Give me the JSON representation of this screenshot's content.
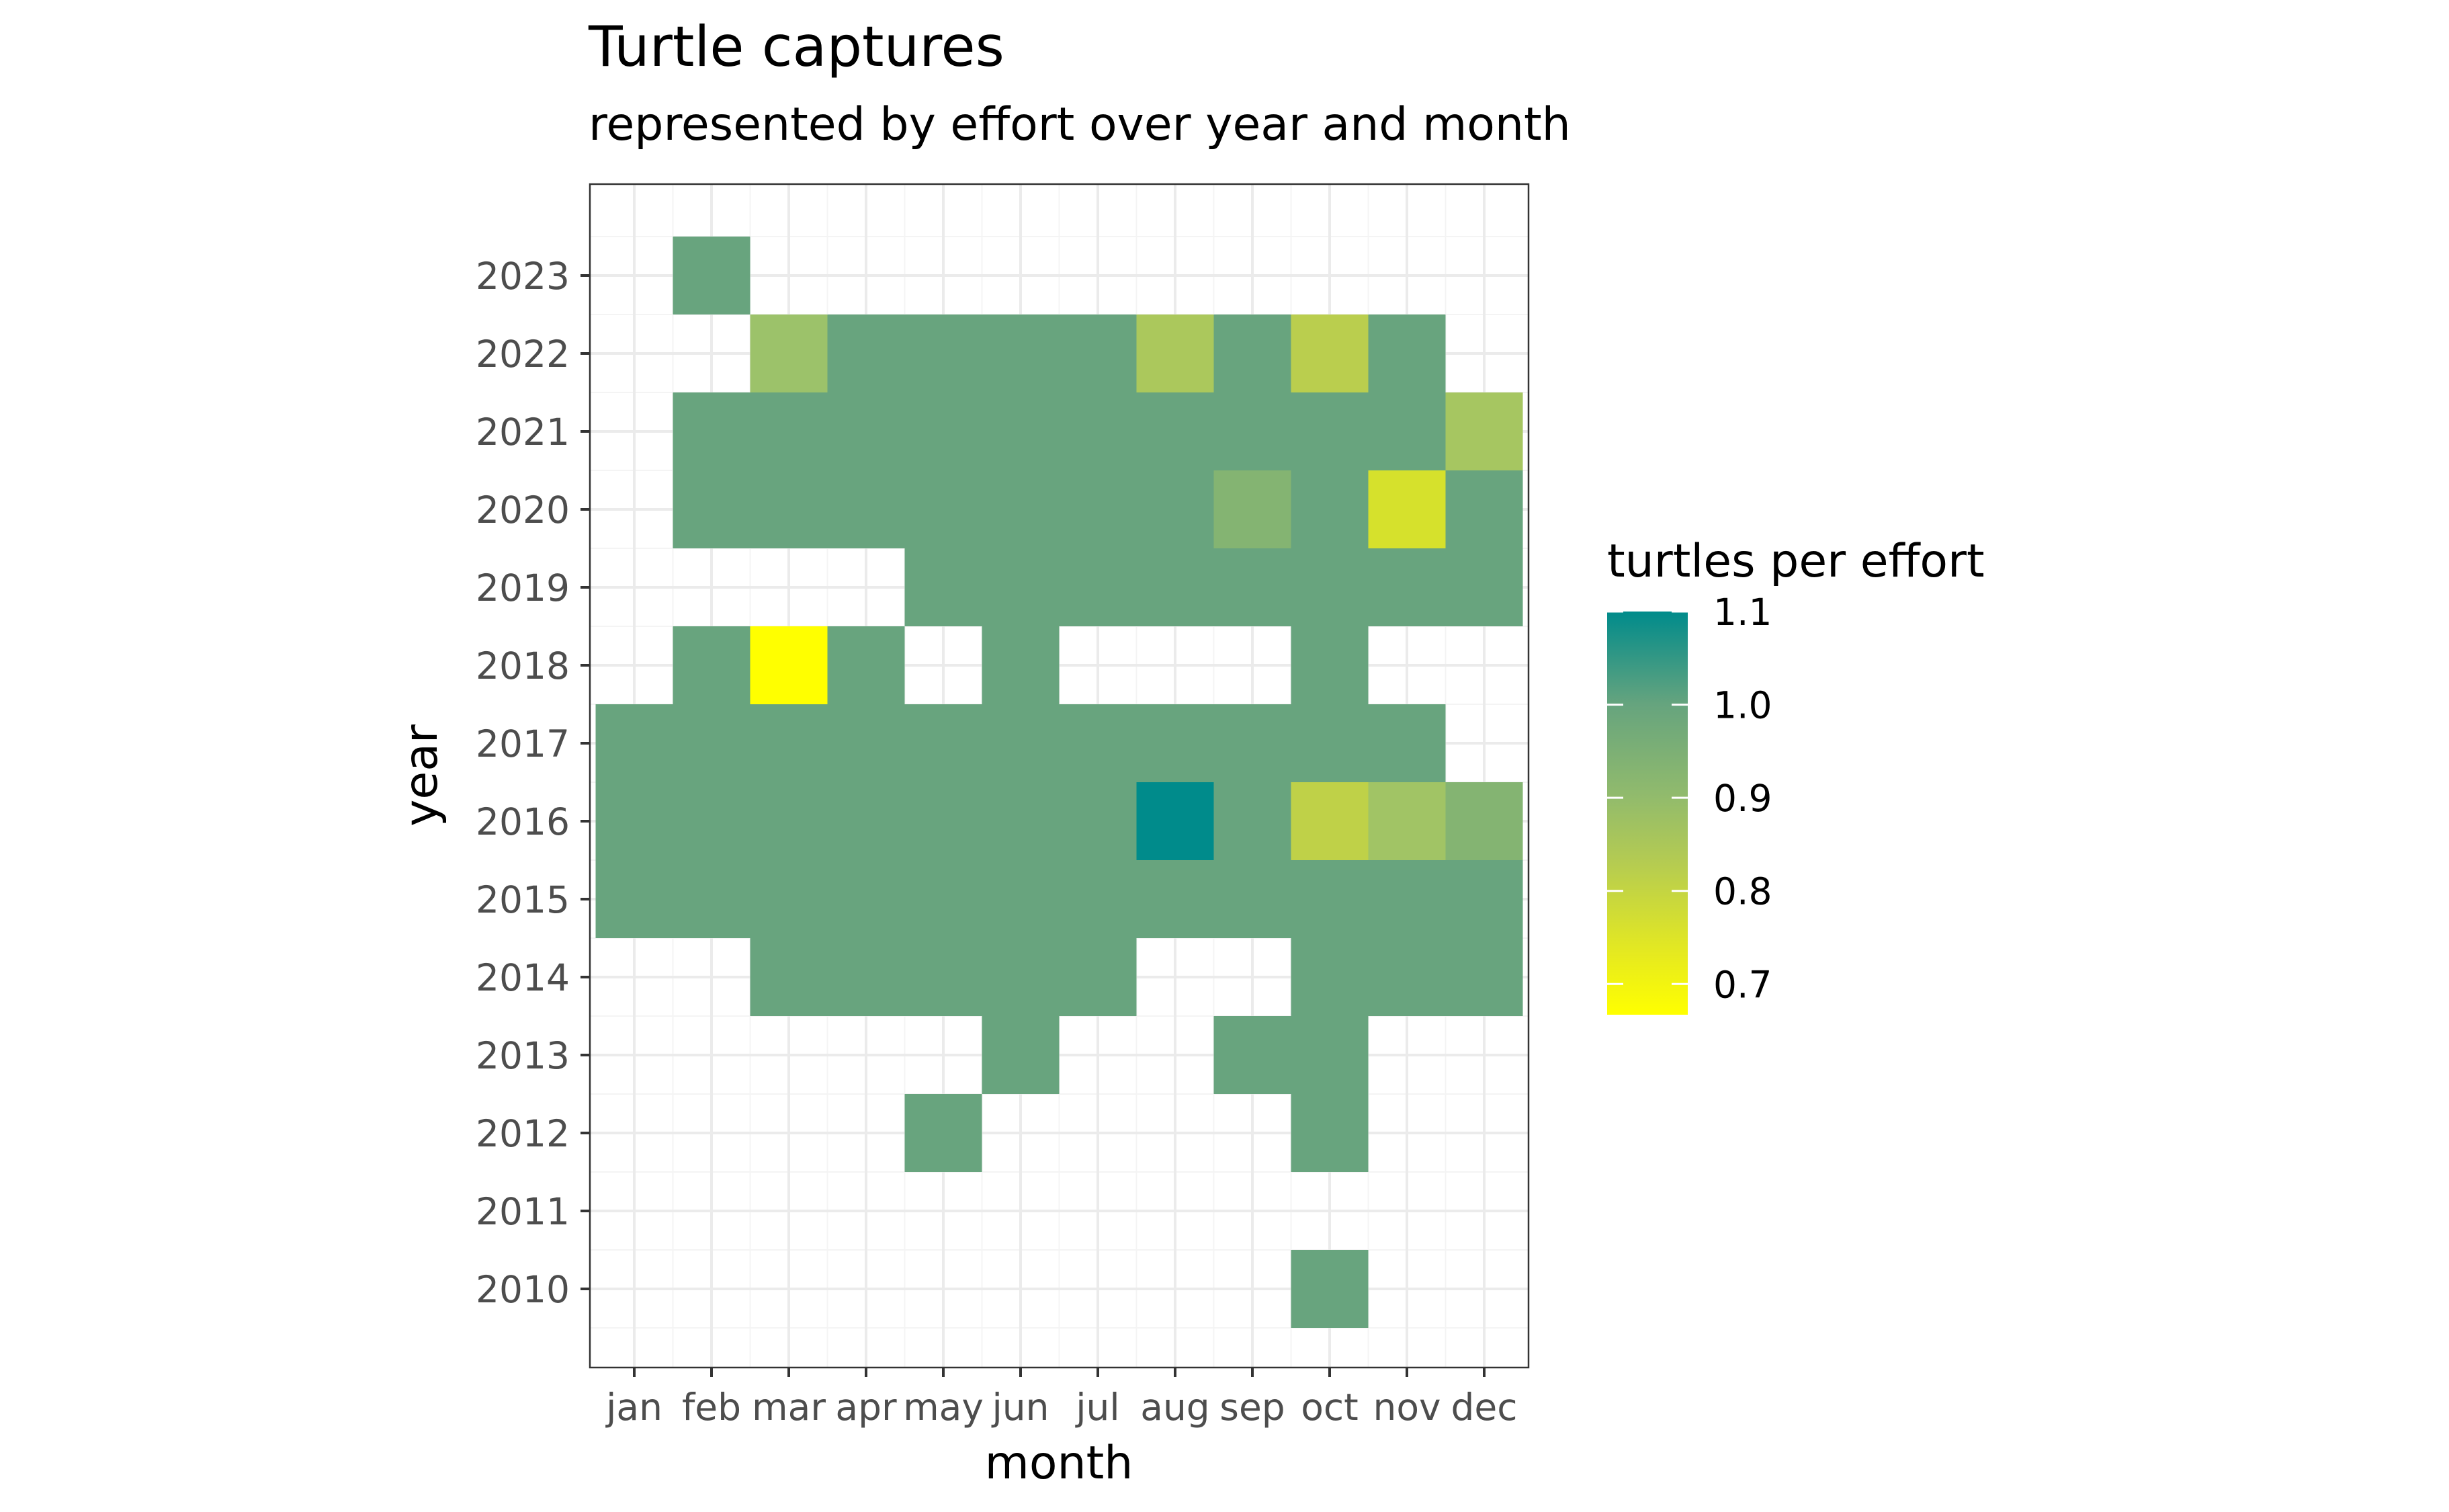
{
  "chart_data": {
    "type": "heatmap",
    "title": "Turtle captures",
    "subtitle": "represented by effort over year and month",
    "xlabel": "month",
    "ylabel": "year",
    "x_categories": [
      "jan",
      "feb",
      "mar",
      "apr",
      "may",
      "jun",
      "jul",
      "aug",
      "sep",
      "oct",
      "nov",
      "dec"
    ],
    "y_categories": [
      2010,
      2011,
      2012,
      2013,
      2014,
      2015,
      2016,
      2017,
      2018,
      2019,
      2020,
      2021,
      2022,
      2023
    ],
    "grid": true,
    "legend": {
      "title": "turtles per effort",
      "position": "right",
      "ticks": [
        0.7,
        0.8,
        0.9,
        1.0,
        1.1
      ],
      "tick_labels": [
        "0.7",
        "0.8",
        "0.9",
        "1.0",
        "1.1"
      ],
      "range": [
        0.667,
        1.1
      ],
      "colors": {
        "low": "#ffff00",
        "mid_low": "#d6e12c",
        "mid": "#9ec26a",
        "mid_high": "#6aa57d",
        "high": "#008b8b"
      }
    },
    "cells": [
      {
        "year": 2023,
        "month": "feb",
        "value": 1.0
      },
      {
        "year": 2022,
        "month": "mar",
        "value": 0.92
      },
      {
        "year": 2022,
        "month": "apr",
        "value": 1.0
      },
      {
        "year": 2022,
        "month": "may",
        "value": 1.0
      },
      {
        "year": 2022,
        "month": "jun",
        "value": 1.0
      },
      {
        "year": 2022,
        "month": "jul",
        "value": 1.0
      },
      {
        "year": 2022,
        "month": "aug",
        "value": 0.89
      },
      {
        "year": 2022,
        "month": "sep",
        "value": 1.0
      },
      {
        "year": 2022,
        "month": "oct",
        "value": 0.86
      },
      {
        "year": 2022,
        "month": "nov",
        "value": 1.0
      },
      {
        "year": 2021,
        "month": "feb",
        "value": 1.0
      },
      {
        "year": 2021,
        "month": "mar",
        "value": 1.0
      },
      {
        "year": 2021,
        "month": "apr",
        "value": 1.0
      },
      {
        "year": 2021,
        "month": "may",
        "value": 1.0
      },
      {
        "year": 2021,
        "month": "jun",
        "value": 1.0
      },
      {
        "year": 2021,
        "month": "jul",
        "value": 1.0
      },
      {
        "year": 2021,
        "month": "aug",
        "value": 1.0
      },
      {
        "year": 2021,
        "month": "sep",
        "value": 1.0
      },
      {
        "year": 2021,
        "month": "oct",
        "value": 1.0
      },
      {
        "year": 2021,
        "month": "nov",
        "value": 1.0
      },
      {
        "year": 2021,
        "month": "dec",
        "value": 0.9
      },
      {
        "year": 2020,
        "month": "feb",
        "value": 1.0
      },
      {
        "year": 2020,
        "month": "mar",
        "value": 1.0
      },
      {
        "year": 2020,
        "month": "apr",
        "value": 1.0
      },
      {
        "year": 2020,
        "month": "may",
        "value": 1.0
      },
      {
        "year": 2020,
        "month": "jun",
        "value": 1.0
      },
      {
        "year": 2020,
        "month": "jul",
        "value": 1.0
      },
      {
        "year": 2020,
        "month": "aug",
        "value": 1.0
      },
      {
        "year": 2020,
        "month": "sep",
        "value": 0.95
      },
      {
        "year": 2020,
        "month": "oct",
        "value": 1.0
      },
      {
        "year": 2020,
        "month": "nov",
        "value": 0.75
      },
      {
        "year": 2020,
        "month": "dec",
        "value": 1.0
      },
      {
        "year": 2019,
        "month": "may",
        "value": 1.0
      },
      {
        "year": 2019,
        "month": "jun",
        "value": 1.0
      },
      {
        "year": 2019,
        "month": "jul",
        "value": 1.0
      },
      {
        "year": 2019,
        "month": "aug",
        "value": 1.0
      },
      {
        "year": 2019,
        "month": "sep",
        "value": 1.0
      },
      {
        "year": 2019,
        "month": "oct",
        "value": 1.0
      },
      {
        "year": 2019,
        "month": "nov",
        "value": 1.0
      },
      {
        "year": 2019,
        "month": "dec",
        "value": 1.0
      },
      {
        "year": 2018,
        "month": "feb",
        "value": 1.0
      },
      {
        "year": 2018,
        "month": "mar",
        "value": 0.667
      },
      {
        "year": 2018,
        "month": "apr",
        "value": 1.0
      },
      {
        "year": 2018,
        "month": "jun",
        "value": 1.0
      },
      {
        "year": 2018,
        "month": "oct",
        "value": 1.0
      },
      {
        "year": 2017,
        "month": "jan",
        "value": 1.0
      },
      {
        "year": 2017,
        "month": "feb",
        "value": 1.0
      },
      {
        "year": 2017,
        "month": "mar",
        "value": 1.0
      },
      {
        "year": 2017,
        "month": "apr",
        "value": 1.0
      },
      {
        "year": 2017,
        "month": "may",
        "value": 1.0
      },
      {
        "year": 2017,
        "month": "jun",
        "value": 1.0
      },
      {
        "year": 2017,
        "month": "jul",
        "value": 1.0
      },
      {
        "year": 2017,
        "month": "aug",
        "value": 1.0
      },
      {
        "year": 2017,
        "month": "sep",
        "value": 1.0
      },
      {
        "year": 2017,
        "month": "oct",
        "value": 1.0
      },
      {
        "year": 2017,
        "month": "nov",
        "value": 1.0
      },
      {
        "year": 2016,
        "month": "jan",
        "value": 1.0
      },
      {
        "year": 2016,
        "month": "feb",
        "value": 1.0
      },
      {
        "year": 2016,
        "month": "mar",
        "value": 1.0
      },
      {
        "year": 2016,
        "month": "apr",
        "value": 1.0
      },
      {
        "year": 2016,
        "month": "may",
        "value": 1.0
      },
      {
        "year": 2016,
        "month": "jun",
        "value": 1.0
      },
      {
        "year": 2016,
        "month": "jul",
        "value": 1.0
      },
      {
        "year": 2016,
        "month": "aug",
        "value": 1.1
      },
      {
        "year": 2016,
        "month": "sep",
        "value": 1.0
      },
      {
        "year": 2016,
        "month": "oct",
        "value": 0.84
      },
      {
        "year": 2016,
        "month": "nov",
        "value": 0.91
      },
      {
        "year": 2016,
        "month": "dec",
        "value": 0.95
      },
      {
        "year": 2015,
        "month": "jan",
        "value": 1.0
      },
      {
        "year": 2015,
        "month": "feb",
        "value": 1.0
      },
      {
        "year": 2015,
        "month": "mar",
        "value": 1.0
      },
      {
        "year": 2015,
        "month": "apr",
        "value": 1.0
      },
      {
        "year": 2015,
        "month": "may",
        "value": 1.0
      },
      {
        "year": 2015,
        "month": "jun",
        "value": 1.0
      },
      {
        "year": 2015,
        "month": "jul",
        "value": 1.0
      },
      {
        "year": 2015,
        "month": "aug",
        "value": 1.0
      },
      {
        "year": 2015,
        "month": "sep",
        "value": 1.0
      },
      {
        "year": 2015,
        "month": "oct",
        "value": 1.0
      },
      {
        "year": 2015,
        "month": "nov",
        "value": 1.0
      },
      {
        "year": 2015,
        "month": "dec",
        "value": 1.0
      },
      {
        "year": 2014,
        "month": "mar",
        "value": 1.0
      },
      {
        "year": 2014,
        "month": "apr",
        "value": 1.0
      },
      {
        "year": 2014,
        "month": "may",
        "value": 1.0
      },
      {
        "year": 2014,
        "month": "jun",
        "value": 1.0
      },
      {
        "year": 2014,
        "month": "jul",
        "value": 1.0
      },
      {
        "year": 2014,
        "month": "oct",
        "value": 1.0
      },
      {
        "year": 2014,
        "month": "nov",
        "value": 1.0
      },
      {
        "year": 2014,
        "month": "dec",
        "value": 1.0
      },
      {
        "year": 2013,
        "month": "jun",
        "value": 1.0
      },
      {
        "year": 2013,
        "month": "sep",
        "value": 1.0
      },
      {
        "year": 2013,
        "month": "oct",
        "value": 1.0
      },
      {
        "year": 2012,
        "month": "may",
        "value": 1.0
      },
      {
        "year": 2012,
        "month": "oct",
        "value": 1.0
      },
      {
        "year": 2010,
        "month": "oct",
        "value": 1.0
      }
    ]
  }
}
